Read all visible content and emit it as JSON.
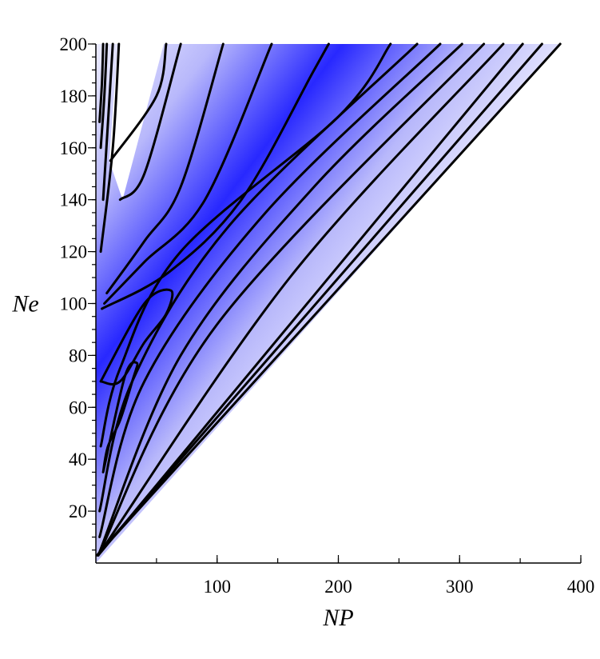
{
  "chart_data": {
    "type": "contour",
    "title": "",
    "xlabel": "NP",
    "ylabel": "Ne",
    "xlim": [
      0,
      400
    ],
    "ylim": [
      0,
      200
    ],
    "x_ticks": [
      100,
      200,
      300,
      400
    ],
    "y_ticks": [
      20,
      40,
      60,
      80,
      100,
      120,
      140,
      160,
      180,
      200
    ],
    "x_minor_step": 50,
    "y_minor_step": 5,
    "grid": false,
    "legend": "none",
    "colors": {
      "low": "#ffffff",
      "high": "#2828ff",
      "contour_line": "#000000"
    },
    "shaded_region": [
      [
        0,
        0
      ],
      [
        383,
        200
      ],
      [
        0,
        200
      ]
    ],
    "unshaded_gap": [
      [
        18,
        200
      ],
      [
        56,
        200
      ],
      [
        22,
        140
      ],
      [
        11,
        155
      ]
    ],
    "ridge": [
      [
        2,
        28
      ],
      [
        20,
        70
      ],
      [
        60,
        105
      ],
      [
        120,
        138
      ],
      [
        180,
        170
      ],
      [
        215,
        200
      ]
    ],
    "contours": [
      {
        "level": 1,
        "points": [
          [
            1,
            3
          ],
          [
            383,
            200
          ]
        ]
      },
      {
        "level": 2,
        "points": [
          [
            1,
            3
          ],
          [
            368,
            200
          ]
        ]
      },
      {
        "level": 3,
        "points": [
          [
            2,
            3
          ],
          [
            352,
            200
          ]
        ]
      },
      {
        "level": 4,
        "points": [
          [
            2,
            3
          ],
          [
            160,
            110
          ],
          [
            336,
            200
          ]
        ]
      },
      {
        "level": 5,
        "points": [
          [
            2,
            3
          ],
          [
            100,
            92
          ],
          [
            320,
            200
          ]
        ]
      },
      {
        "level": 6,
        "points": [
          [
            2,
            3
          ],
          [
            70,
            80
          ],
          [
            180,
            145
          ],
          [
            302,
            200
          ]
        ]
      },
      {
        "level": 7,
        "points": [
          [
            3,
            10
          ],
          [
            40,
            70
          ],
          [
            140,
            135
          ],
          [
            284,
            200
          ]
        ]
      },
      {
        "level": 8,
        "points": [
          [
            3,
            20
          ],
          [
            30,
            70
          ],
          [
            110,
            130
          ],
          [
            265,
            200
          ]
        ]
      },
      {
        "level": 9,
        "points": [
          [
            4,
            45
          ],
          [
            20,
            75
          ],
          [
            70,
            120
          ],
          [
            200,
            172
          ],
          [
            243,
            200
          ]
        ]
      },
      {
        "level": 10,
        "points": [
          [
            6,
            35
          ],
          [
            24,
            72
          ],
          [
            34,
            77
          ],
          [
            30,
            70
          ],
          [
            20,
            55
          ],
          [
            10,
            45
          ],
          [
            6,
            35
          ]
        ]
      },
      {
        "level": 11,
        "points": [
          [
            4,
            70
          ],
          [
            40,
            100
          ],
          [
            62,
            105
          ],
          [
            58,
            96
          ],
          [
            40,
            85
          ],
          [
            20,
            70
          ],
          [
            4,
            70
          ]
        ]
      },
      {
        "level": 12,
        "points": [
          [
            5,
            98
          ],
          [
            60,
            112
          ],
          [
            120,
            140
          ],
          [
            180,
            190
          ],
          [
            192,
            200
          ]
        ]
      },
      {
        "level": 13,
        "points": [
          [
            7,
            100
          ],
          [
            40,
            116
          ],
          [
            90,
            140
          ],
          [
            145,
            200
          ]
        ]
      },
      {
        "level": 14,
        "points": [
          [
            9,
            104
          ],
          [
            40,
            124
          ],
          [
            70,
            145
          ],
          [
            105,
            200
          ]
        ]
      },
      {
        "level": 15,
        "points": [
          [
            20,
            140
          ],
          [
            40,
            150
          ],
          [
            70,
            200
          ]
        ]
      },
      {
        "level": 16,
        "points": [
          [
            12,
            155
          ],
          [
            50,
            180
          ],
          [
            58,
            200
          ]
        ]
      },
      {
        "level": 17,
        "points": [
          [
            4,
            120
          ],
          [
            14,
            160
          ],
          [
            19,
            200
          ]
        ]
      },
      {
        "level": 18,
        "points": [
          [
            6,
            140
          ],
          [
            10,
            170
          ],
          [
            14,
            200
          ]
        ]
      },
      {
        "level": 19,
        "points": [
          [
            4,
            160
          ],
          [
            7,
            180
          ],
          [
            9,
            200
          ]
        ]
      },
      {
        "level": 20,
        "points": [
          [
            3,
            170
          ],
          [
            5,
            185
          ],
          [
            6,
            200
          ]
        ]
      }
    ]
  }
}
